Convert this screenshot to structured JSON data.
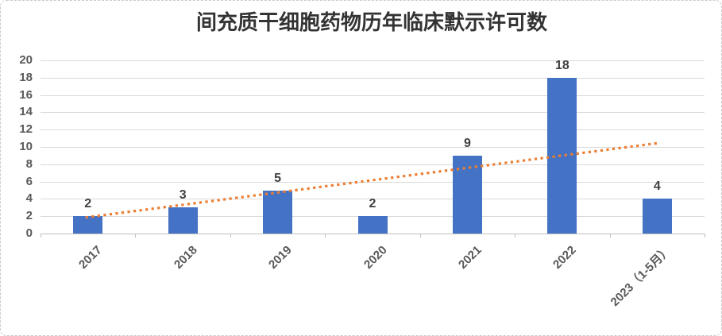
{
  "chart": {
    "title": "间充质干细胞药物历年临床默示许可数"
  },
  "chart_data": {
    "type": "bar",
    "title": "间充质干细胞药物历年临床默示许可数",
    "categories": [
      "2017",
      "2018",
      "2019",
      "2020",
      "2021",
      "2022",
      "2023（1-5月）"
    ],
    "values": [
      2,
      3,
      5,
      2,
      9,
      18,
      4
    ],
    "data_labels": [
      "2",
      "3",
      "5",
      "2",
      "9",
      "18",
      "4"
    ],
    "xlabel": "",
    "ylabel": "",
    "ylim": [
      0,
      20
    ],
    "ytick_step": 2,
    "yticks": [
      0,
      2,
      4,
      6,
      8,
      10,
      12,
      14,
      16,
      18,
      20
    ],
    "grid": true,
    "legend": false,
    "colors": {
      "bar": "#4472C4",
      "trendline": "#ED7D31",
      "gridline": "#D9D9D9",
      "axis_line": "#BFBFBF",
      "data_label": "#404040",
      "axis_label": "#595959",
      "title": "#333333"
    },
    "trendline": {
      "type": "linear",
      "style": "dotted",
      "color": "#ED7D31",
      "start_value": 1.86,
      "end_value": 10.43
    }
  }
}
